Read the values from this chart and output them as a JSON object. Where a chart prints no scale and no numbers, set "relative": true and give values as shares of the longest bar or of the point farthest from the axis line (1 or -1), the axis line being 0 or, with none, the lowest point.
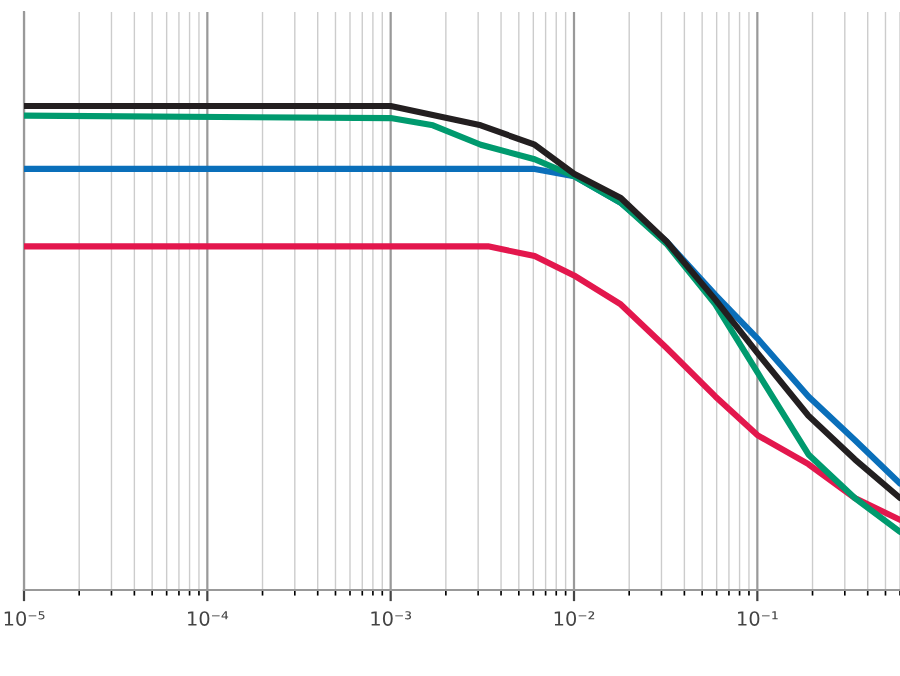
{
  "chart_data": {
    "type": "line",
    "log": "x",
    "relative": true,
    "grid": "x",
    "xlim": [
      1e-05,
      0.6
    ],
    "xticks": [
      {
        "value": 1e-05,
        "label": "10⁻⁵"
      },
      {
        "value": 0.0001,
        "label": "10⁻⁴"
      },
      {
        "value": 0.001,
        "label": "10⁻³"
      },
      {
        "value": 0.01,
        "label": "10⁻²"
      },
      {
        "value": 0.1,
        "label": "10⁻¹"
      }
    ],
    "series": [
      {
        "color": "#0a6fba",
        "x": [
          1e-05,
          0.001,
          0.0061,
          0.01,
          0.018,
          0.032,
          0.059,
          0.1,
          0.19,
          0.34,
          0.6
        ],
        "values": [
          0.87,
          0.87,
          0.87,
          0.855,
          0.8,
          0.72,
          0.61,
          0.52,
          0.4,
          0.31,
          0.22
        ]
      },
      {
        "color": "#e3174d",
        "x": [
          1e-05,
          0.001,
          0.0034,
          0.0061,
          0.01,
          0.018,
          0.032,
          0.059,
          0.1,
          0.19,
          0.34,
          0.6
        ],
        "values": [
          0.71,
          0.71,
          0.71,
          0.69,
          0.65,
          0.59,
          0.5,
          0.4,
          0.32,
          0.26,
          0.19,
          0.145
        ]
      },
      {
        "color": "#009a6e",
        "x": [
          1e-05,
          0.001,
          0.0017,
          0.0031,
          0.0061,
          0.01,
          0.018,
          0.032,
          0.059,
          0.1,
          0.19,
          0.34,
          0.6
        ],
        "values": [
          0.98,
          0.975,
          0.96,
          0.92,
          0.89,
          0.855,
          0.8,
          0.715,
          0.59,
          0.45,
          0.28,
          0.19,
          0.12
        ]
      },
      {
        "color": "#231f20",
        "x": [
          1e-05,
          0.001,
          0.0031,
          0.0061,
          0.01,
          0.018,
          0.032,
          0.059,
          0.1,
          0.19,
          0.34,
          0.6
        ],
        "values": [
          1.0,
          1.0,
          0.96,
          0.92,
          0.86,
          0.81,
          0.72,
          0.6,
          0.49,
          0.36,
          0.27,
          0.19
        ]
      }
    ]
  }
}
